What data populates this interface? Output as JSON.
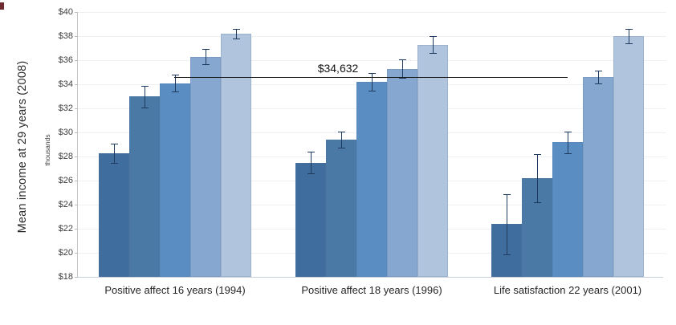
{
  "chart_data": {
    "type": "bar",
    "title": "",
    "ylabel": "Mean income at 29 years (2008)",
    "ylabel_sub": "thousands",
    "xlabel": "",
    "ylim": [
      18,
      40
    ],
    "ytick_step": 2,
    "ytick_prefix": "$",
    "grid": true,
    "legend": false,
    "categories": [
      "Positive affect 16 years (1994)",
      "Positive affect 18 years (1996)",
      "Life satisfaction 22 years (2001)"
    ],
    "series_per_group": 5,
    "groups": [
      {
        "category": "Positive affect 16 years (1994)",
        "values": [
          28.3,
          33.0,
          34.1,
          36.3,
          38.2
        ],
        "errors": [
          0.8,
          0.9,
          0.7,
          0.65,
          0.4
        ]
      },
      {
        "category": "Positive affect 18 years (1996)",
        "values": [
          27.5,
          29.4,
          34.2,
          35.3,
          37.3
        ],
        "errors": [
          0.9,
          0.65,
          0.75,
          0.75,
          0.7
        ]
      },
      {
        "category": "Life satisfaction 22 years (2001)",
        "values": [
          22.4,
          26.2,
          29.2,
          34.6,
          38.0
        ],
        "errors": [
          2.5,
          2.0,
          0.9,
          0.55,
          0.6
        ]
      }
    ],
    "bar_colors": [
      "#3f6e9e",
      "#4a79a6",
      "#5a8ec3",
      "#86a8d0",
      "#b0c4de"
    ],
    "error_bar_color": "#1f3a5f",
    "reference_line": {
      "value_thousands": 34.632,
      "label": "$34,632",
      "color": "#1a1a1a"
    },
    "axis_color": "#c6c6c6",
    "gridline_color": "#eef0f3"
  }
}
